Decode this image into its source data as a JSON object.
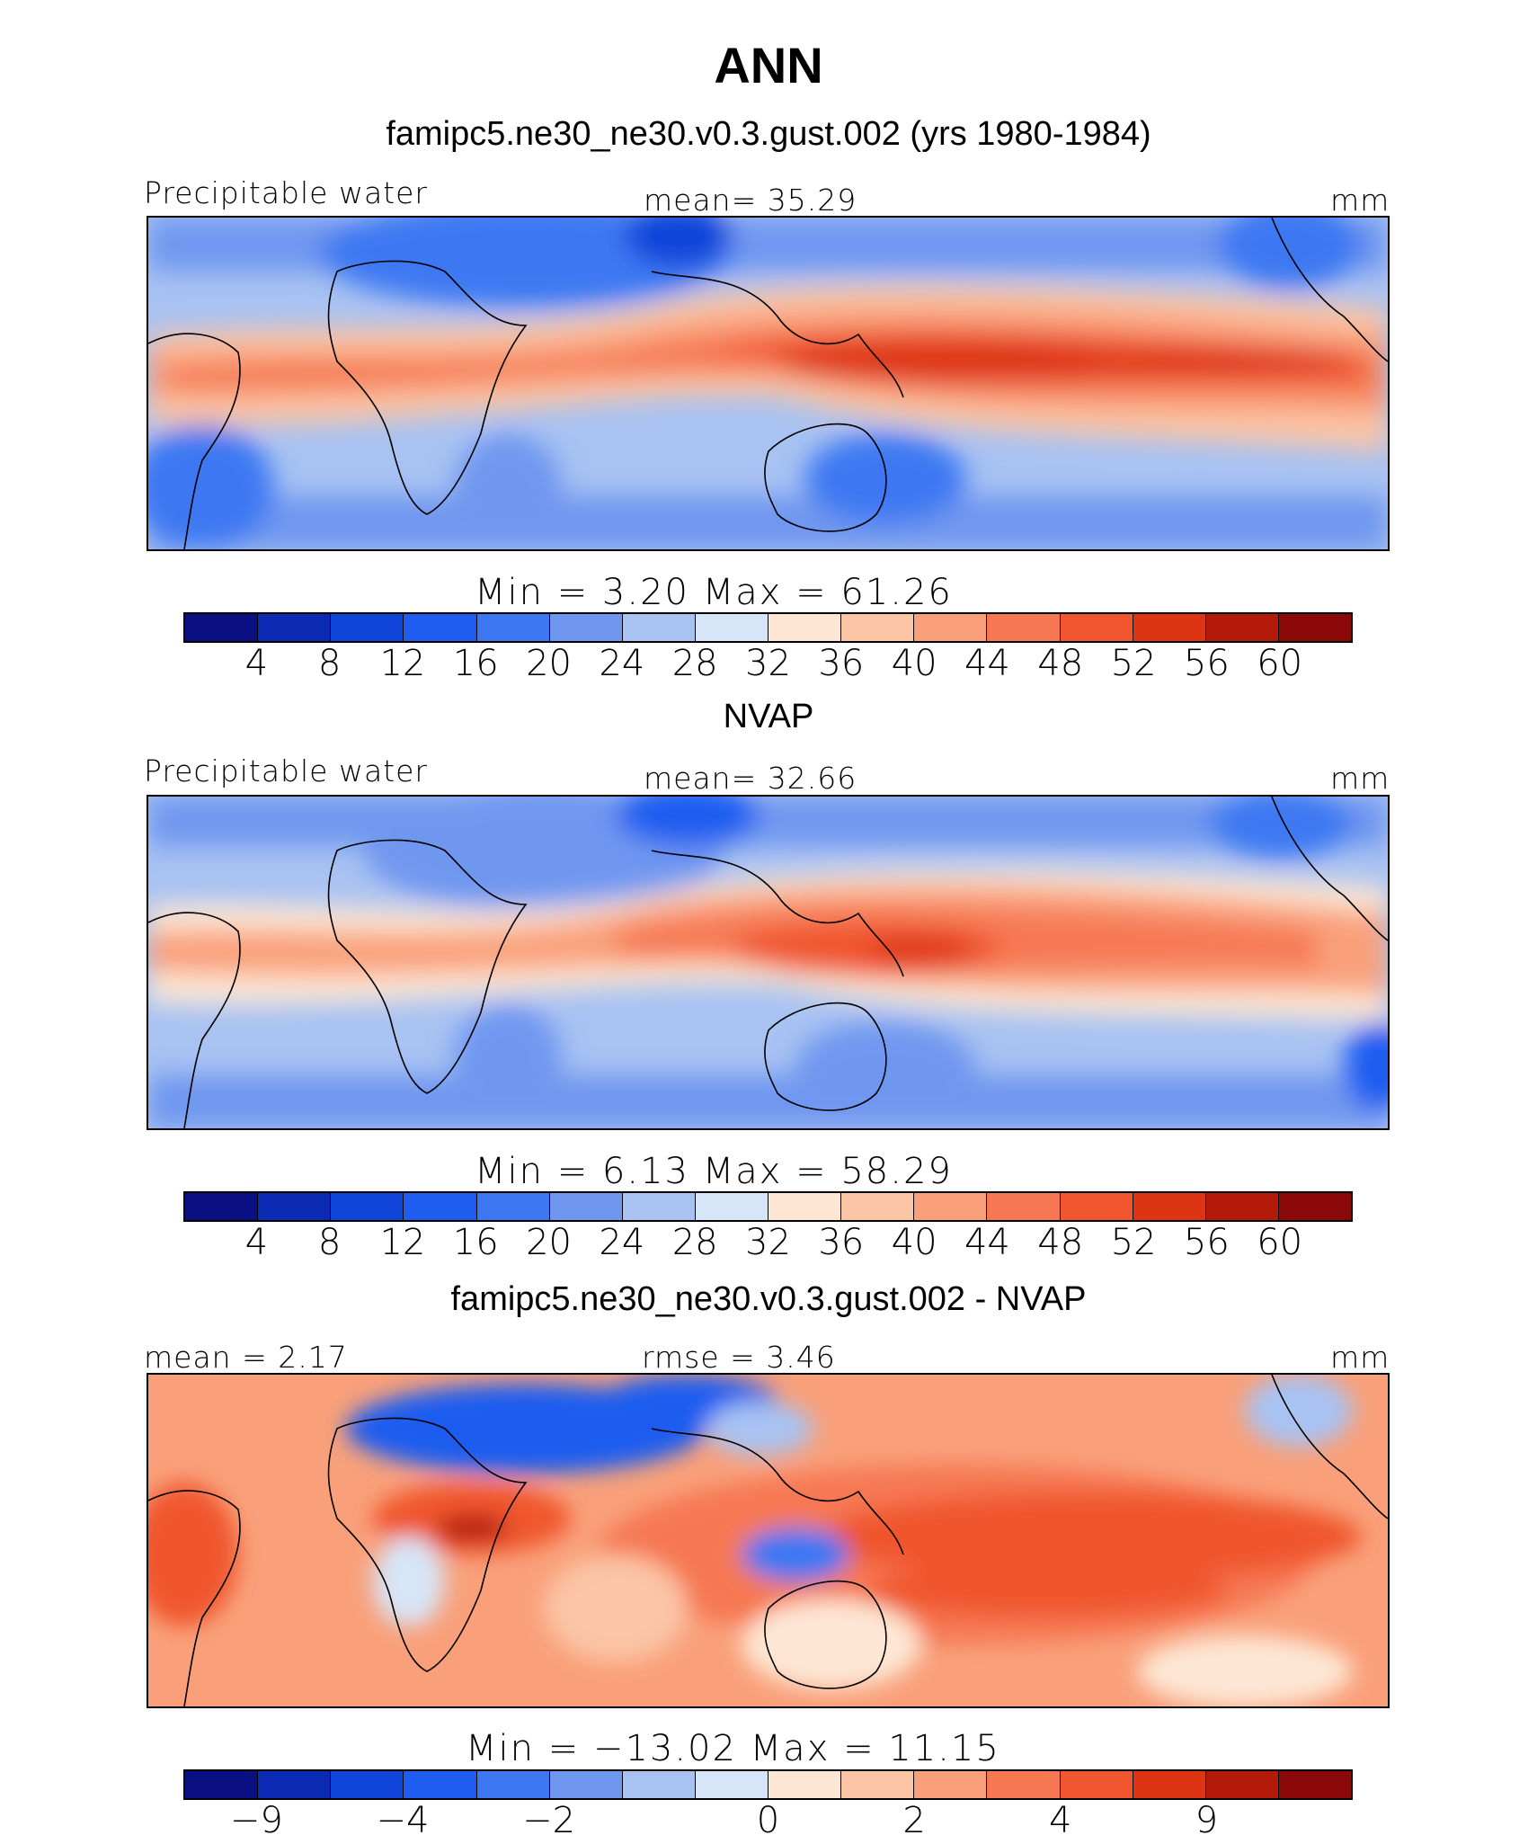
{
  "title": "ANN",
  "colors": [
    "#0a0f82",
    "#0b2bb5",
    "#0f45d9",
    "#1f5df0",
    "#3d78f2",
    "#6f97f0",
    "#a8c2f2",
    "#d7e5f8",
    "#fde7d4",
    "#fbc5a6",
    "#f9a07a",
    "#f67852",
    "#f0562f",
    "#dd3514",
    "#b41a0a",
    "#8b0909"
  ],
  "panels": [
    {
      "title": "famipc5.ne30_ne30.v0.3.gust.002 (yrs 1980-1984)",
      "left_label": "Precipitable water",
      "center_label": "mean=   35.29",
      "right_label": "mm",
      "minmax": "Min =    3.20  Max =   61.26",
      "ticks": [
        "4",
        "8",
        "12",
        "16",
        "20",
        "24",
        "28",
        "32",
        "36",
        "40",
        "44",
        "48",
        "52",
        "56",
        "60"
      ],
      "map_name": "model-precipitable-water-map"
    },
    {
      "title": "NVAP",
      "left_label": "Precipitable water",
      "center_label": "mean=   32.66",
      "right_label": "mm",
      "minmax": "Min =    6.13  Max =   58.29",
      "ticks": [
        "4",
        "8",
        "12",
        "16",
        "20",
        "24",
        "28",
        "32",
        "36",
        "40",
        "44",
        "48",
        "52",
        "56",
        "60"
      ],
      "map_name": "nvap-precipitable-water-map"
    },
    {
      "title": "famipc5.ne30_ne30.v0.3.gust.002 - NVAP",
      "left_label": "mean =    2.17",
      "center_label": "rmse =    3.46",
      "right_label": "mm",
      "minmax": "Min = −13.02  Max =   11.15",
      "ticks": [
        "−9",
        "−4",
        "−2",
        "0",
        "2",
        "4",
        "9"
      ],
      "map_name": "difference-map"
    }
  ]
}
